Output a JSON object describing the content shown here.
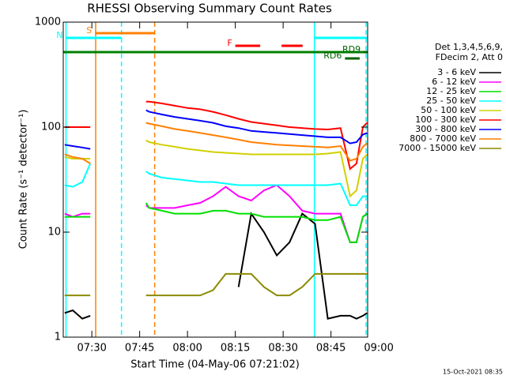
{
  "chart_data": {
    "type": "line",
    "title": "RHESSI Observing Summary Count Rates",
    "xlabel": "Start Time (04-May-06 07:21:02)",
    "ylabel": "Count Rate (s⁻¹ detector⁻¹)",
    "legend_header": [
      "Det 1,3,4,5,6,9,",
      "FDecim 2, Att 0"
    ],
    "footer": "15-Oct-2021 08:35",
    "log_y": true,
    "xlim": [
      21.03,
      116.5
    ],
    "ylim": [
      1,
      1000
    ],
    "yticks": [
      1,
      10,
      100,
      1000
    ],
    "xticks": [
      {
        "value": 30,
        "label": "07:30"
      },
      {
        "value": 45,
        "label": "07:45"
      },
      {
        "value": 60,
        "label": "08:00"
      },
      {
        "value": 75,
        "label": "08:15"
      },
      {
        "value": 90,
        "label": "08:30"
      },
      {
        "value": 105,
        "label": "08:45"
      },
      {
        "value": 120,
        "label": "09:00"
      }
    ],
    "x": [
      21.5,
      24,
      27,
      29.5,
      38,
      47,
      48,
      52,
      56,
      60,
      64,
      68,
      72,
      76,
      80,
      84,
      88,
      92,
      96,
      100,
      104,
      108,
      111,
      113,
      115,
      116.3
    ],
    "series": [
      {
        "name": "3 - 6 keV",
        "color": "#000000",
        "values": [
          1.7,
          1.8,
          1.5,
          1.6,
          null,
          null,
          null,
          null,
          null,
          null,
          null,
          null,
          null,
          3,
          15,
          10,
          6,
          8,
          15,
          12,
          1.5,
          1.6,
          1.6,
          1.5,
          1.6,
          1.7
        ]
      },
      {
        "name": "6 - 12 keV",
        "color": "#ff00ff",
        "values": [
          15,
          14,
          15,
          15,
          null,
          18,
          17,
          17,
          17,
          18,
          19,
          22,
          27,
          22,
          20,
          25,
          28,
          22,
          16,
          15,
          15,
          15,
          8,
          8,
          14,
          15
        ]
      },
      {
        "name": "12 - 25 keV",
        "color": "#00e000",
        "values": [
          14,
          14,
          14,
          14,
          null,
          19,
          17,
          16,
          15,
          15,
          15,
          16,
          16,
          15,
          15,
          14,
          14,
          14,
          14,
          13,
          13,
          14,
          8,
          8,
          14,
          15
        ]
      },
      {
        "name": "25 - 50 keV",
        "color": "#00ffff",
        "values": [
          28,
          27,
          30,
          45,
          null,
          38,
          36,
          33,
          32,
          31,
          30,
          30,
          29,
          28,
          28,
          28,
          28,
          28,
          28,
          28,
          28,
          29,
          18,
          18,
          22,
          22
        ]
      },
      {
        "name": "50 - 100 keV",
        "color": "#d0d000",
        "values": [
          52,
          50,
          50,
          50,
          null,
          75,
          72,
          68,
          65,
          62,
          60,
          58,
          57,
          56,
          55,
          55,
          55,
          55,
          55,
          55,
          56,
          58,
          22,
          25,
          50,
          55
        ]
      },
      {
        "name": "100 - 300 keV",
        "color": "#ff0000",
        "values": [
          100,
          100,
          100,
          100,
          null,
          175,
          175,
          168,
          160,
          152,
          148,
          140,
          130,
          120,
          112,
          108,
          104,
          100,
          98,
          96,
          95,
          98,
          40,
          45,
          100,
          110
        ]
      },
      {
        "name": "300 - 800 keV",
        "color": "#0000ff",
        "values": [
          68,
          66,
          64,
          62,
          null,
          145,
          140,
          132,
          125,
          120,
          115,
          110,
          102,
          98,
          92,
          90,
          88,
          86,
          84,
          82,
          80,
          80,
          70,
          72,
          85,
          88
        ]
      },
      {
        "name": "800 - 7000 keV",
        "color": "#ff8000",
        "values": [
          55,
          52,
          50,
          45,
          null,
          110,
          108,
          102,
          96,
          92,
          88,
          84,
          80,
          76,
          72,
          70,
          68,
          67,
          66,
          65,
          64,
          66,
          48,
          50,
          65,
          70
        ]
      },
      {
        "name": "7000 - 15000 keV",
        "color": "#8b8b00",
        "values": [
          2.5,
          2.5,
          2.5,
          2.5,
          null,
          2.5,
          2.5,
          2.5,
          2.5,
          2.5,
          2.5,
          2.8,
          4,
          4,
          4,
          3,
          2.5,
          2.5,
          3,
          4,
          4,
          4,
          4,
          4,
          4,
          4
        ]
      }
    ],
    "flags": [
      {
        "label": "S",
        "color": "#ff8000",
        "start": 31,
        "end": 49.7
      },
      {
        "label": "N",
        "color": "#00ffff",
        "start": 21.9,
        "end": 39.3
      },
      {
        "color": "#00ffff",
        "start": 99.8,
        "end": 116.5
      },
      {
        "label": "F",
        "color": "#ff0000",
        "start": 75,
        "end": 82.8
      },
      {
        "color": "#ff0000",
        "start": 89.5,
        "end": 96.1
      },
      {
        "color": "#008000",
        "start": 21.03,
        "end": 116.5
      },
      {
        "label": "RD9",
        "color": "#006400",
        "start": 115.3,
        "end": 116.5
      },
      {
        "label": "RD6",
        "color": "#006400",
        "start": 109.4,
        "end": 114
      }
    ],
    "vlines": [
      {
        "x": 21.9,
        "color": "#00ffff",
        "dashed": false
      },
      {
        "x": 99.8,
        "color": "#00ffff",
        "dashed": false
      },
      {
        "x": 39.3,
        "color": "#00ffff",
        "dashed": true
      },
      {
        "x": 116,
        "color": "#00ffff",
        "dashed": true
      },
      {
        "x": 31.2,
        "color": "#ff8000",
        "dashed": false
      },
      {
        "x": 49.7,
        "color": "#ff8000",
        "dashed": true
      }
    ]
  }
}
